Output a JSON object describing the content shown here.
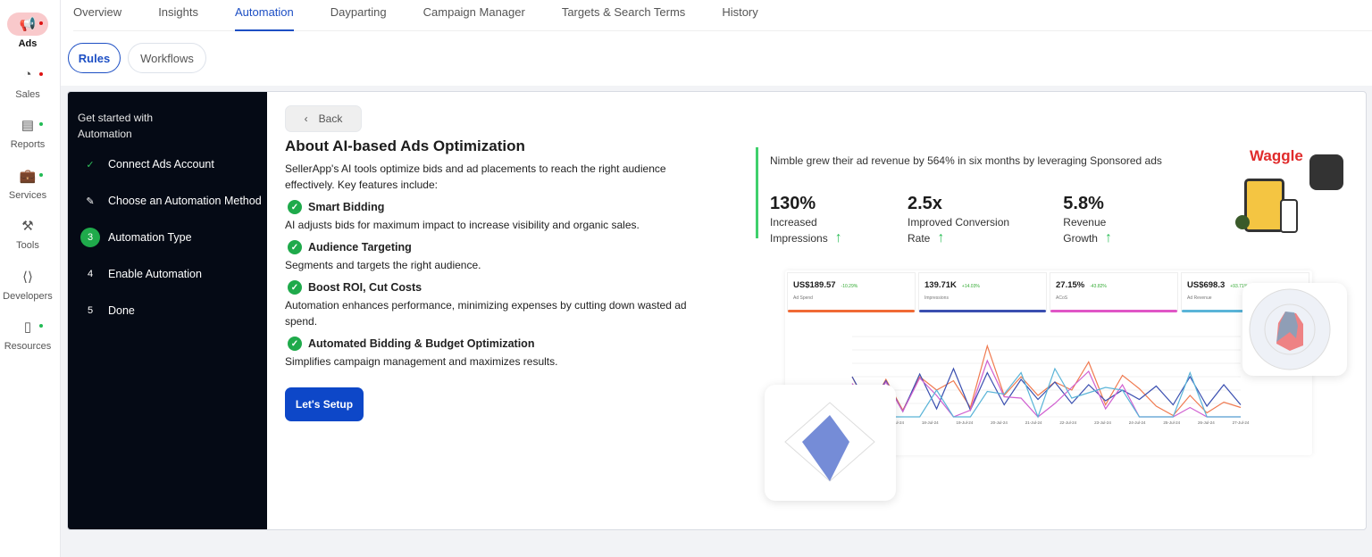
{
  "sidebar": {
    "items": [
      {
        "label": "Ads",
        "icon": "megaphone-icon",
        "dot": "#d11"
      },
      {
        "label": "Sales",
        "icon": "pie-chart-icon",
        "dot": "#d11"
      },
      {
        "label": "Reports",
        "icon": "report-icon",
        "dot": "#2b5"
      },
      {
        "label": "Services",
        "icon": "briefcase-icon",
        "dot": "#2b5"
      },
      {
        "label": "Tools",
        "icon": "tools-icon",
        "dot": ""
      },
      {
        "label": "Developers",
        "icon": "code-icon",
        "dot": ""
      },
      {
        "label": "Resources",
        "icon": "book-icon",
        "dot": "#2b5"
      }
    ]
  },
  "tabs": [
    "Overview",
    "Insights",
    "Automation",
    "Dayparting",
    "Campaign Manager",
    "Targets & Search Terms",
    "History"
  ],
  "active_tab": "Automation",
  "subtabs": {
    "rules": "Rules",
    "workflows": "Workflows"
  },
  "steps": {
    "heading": "Get started with Automation",
    "items": [
      {
        "marker": "✓",
        "label": "Connect Ads Account",
        "state": "done"
      },
      {
        "marker": "✎",
        "label": "Choose an Automation Method",
        "state": "editing"
      },
      {
        "marker": "3",
        "label": "Automation Type",
        "state": "current"
      },
      {
        "marker": "4",
        "label": "Enable Automation",
        "state": "pending"
      },
      {
        "marker": "5",
        "label": "Done",
        "state": "pending"
      }
    ]
  },
  "main": {
    "back": "Back",
    "title": "About AI-based Ads Optimization",
    "intro": "SellerApp's AI tools optimize bids and ad placements to reach the right audience effectively. Key features include:",
    "features": [
      {
        "title": "Smart Bidding",
        "desc": "AI adjusts bids for maximum impact to increase visibility and organic sales."
      },
      {
        "title": "Audience Targeting",
        "desc": "Segments and targets the right audience."
      },
      {
        "title": "Boost ROI, Cut Costs",
        "desc": "Automation enhances performance, minimizing expenses by cutting down wasted ad spend."
      },
      {
        "title": "Automated Bidding & Budget Optimization",
        "desc": "Simplifies campaign management and maximizes results."
      }
    ],
    "cta": "Let's Setup"
  },
  "case_study": {
    "headline": "Nimble grew their ad revenue by 564% in six months by leveraging Sponsored ads",
    "kpis": [
      {
        "value": "130%",
        "label": "Increased Impressions"
      },
      {
        "value": "2.5x",
        "label": "Improved Conversion Rate"
      },
      {
        "value": "5.8%",
        "label": "Revenue Growth"
      }
    ],
    "brand": "Waggle"
  },
  "preview": {
    "cards": [
      {
        "value": "US$189.57",
        "change": "-10.29%",
        "label": "Ad Spend",
        "color": "#f06a35"
      },
      {
        "value": "139.71K",
        "change": "+14.03%",
        "label": "Impressions",
        "color": "#3a4fb0"
      },
      {
        "value": "27.15%",
        "change": "-43.82%",
        "label": "ACoS",
        "color": "#e056c6"
      },
      {
        "value": "US$698.3",
        "change": "+93.71%",
        "label": "Ad Revenue",
        "color": "#5ab4d8"
      }
    ],
    "dates": [
      "16-Jul-24",
      "17-Jul-24",
      "18-Jul-24",
      "19-Jul-24",
      "20-Jul-24",
      "21-Jul-24",
      "22-Jul-24",
      "23-Jul-24",
      "24-Jul-24",
      "25-Jul-24",
      "26-Jul-24",
      "27-Jul-24"
    ],
    "series": [
      {
        "color": "#f07a50",
        "values": [
          3,
          0.5,
          2.8,
          0.5,
          3,
          2,
          2.7,
          0.7,
          5.3,
          1.6,
          3,
          1.6,
          2.6,
          2,
          4.1,
          0.9,
          3.1,
          2.1,
          0.8,
          0.1,
          1.6,
          0.3,
          1.1,
          0.7
        ]
      },
      {
        "color": "#3a4fb0",
        "values": [
          3,
          0.7,
          2.7,
          0.4,
          3.2,
          0.6,
          3.6,
          0.5,
          3.3,
          0.9,
          2.8,
          1.3,
          2.6,
          1,
          2.4,
          1.2,
          2,
          1.3,
          2.3,
          0.9,
          3,
          0.8,
          2.4,
          0.9
        ]
      },
      {
        "color": "#d060d0",
        "values": [
          2.5,
          0.7,
          2.6,
          0.4,
          2.9,
          1.6,
          0,
          0.5,
          4.2,
          1.5,
          1.4,
          0,
          1,
          2.2,
          3.4,
          0.6,
          2.4,
          0,
          0,
          0,
          0.7,
          0,
          0,
          0
        ]
      },
      {
        "color": "#5ab4d8",
        "values": [
          0,
          0,
          0,
          0,
          0,
          2,
          0,
          0,
          1.9,
          1.7,
          3.3,
          0,
          3.6,
          1.4,
          1.8,
          2.2,
          2,
          0,
          0,
          0,
          3.3,
          0,
          0,
          0
        ]
      }
    ]
  }
}
